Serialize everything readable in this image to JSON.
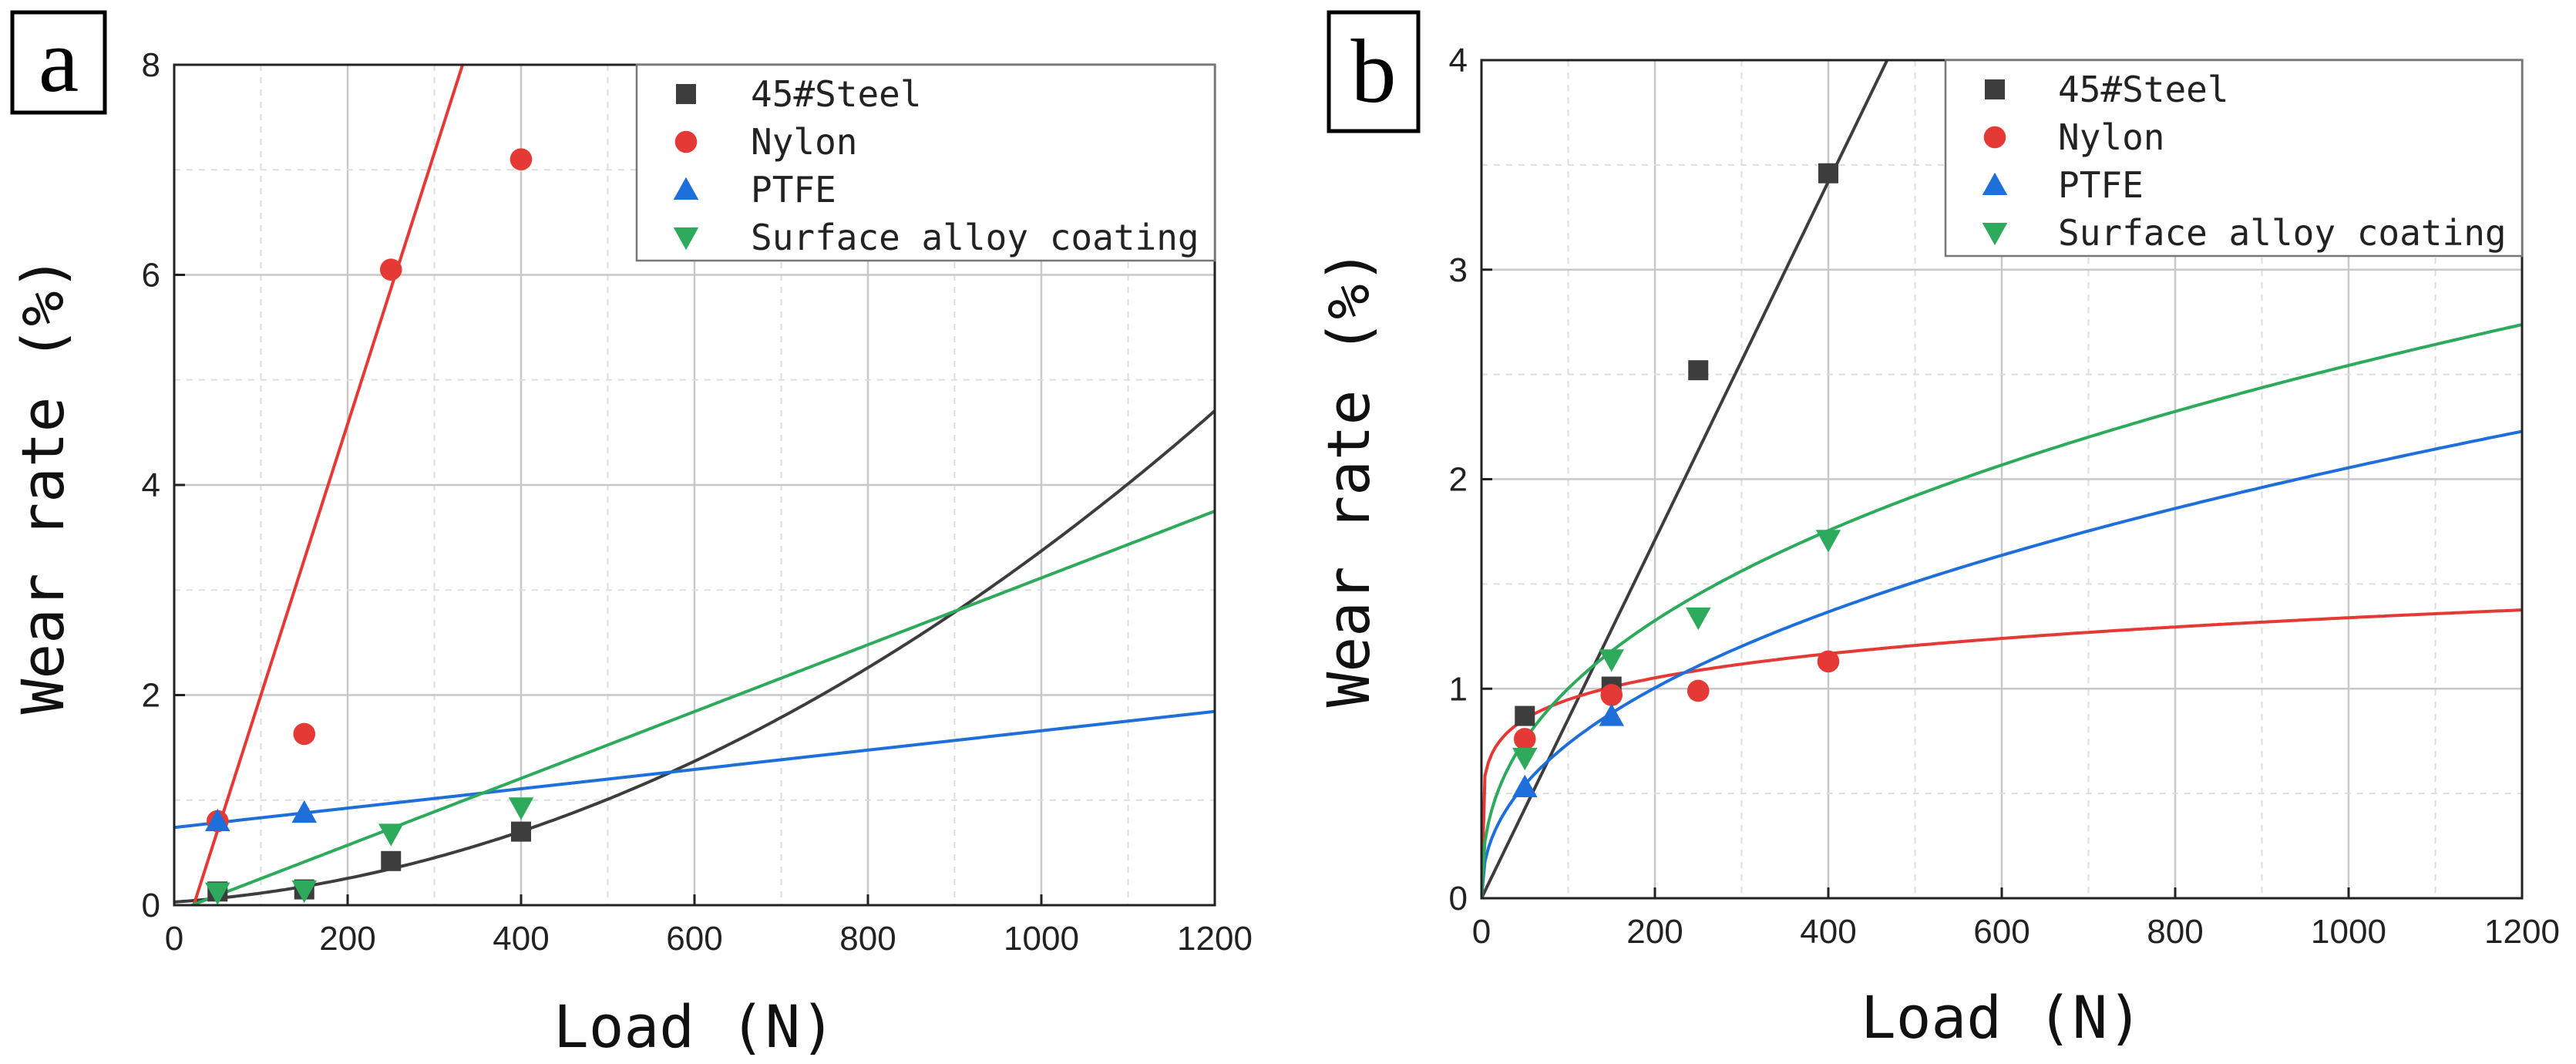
{
  "chart_data": [
    {
      "type": "scatter",
      "panel_label": "a",
      "xlabel": "Load (N)",
      "ylabel": "Wear rate (%)",
      "xlim": [
        0,
        1200
      ],
      "ylim": [
        0,
        8
      ],
      "xticks": [
        0,
        200,
        400,
        600,
        800,
        1000,
        1200
      ],
      "yticks": [
        0,
        2,
        4,
        6,
        8
      ],
      "grid": true,
      "legend": "top-right",
      "series": [
        {
          "name": "45#Steel",
          "marker": "square",
          "color": "#3d3d3d",
          "x": [
            50,
            150,
            250,
            400
          ],
          "y": [
            0.13,
            0.15,
            0.42,
            0.7
          ],
          "fit": {
            "type": "quadratic",
            "coeffs": [
              0.03,
              0.000572,
              2.77e-06
            ]
          }
        },
        {
          "name": "Nylon",
          "marker": "circle",
          "color": "#e53935",
          "x": [
            50,
            150,
            250,
            400
          ],
          "y": [
            0.8,
            1.63,
            6.05,
            7.1
          ],
          "fit": {
            "type": "linear",
            "coeffs": [
              -0.58,
              0.0258
            ]
          }
        },
        {
          "name": "PTFE",
          "marker": "triangle-up",
          "color": "#1e6fd9",
          "x": [
            50,
            150
          ],
          "y": [
            0.8,
            0.88
          ],
          "fit": {
            "type": "linear",
            "coeffs": [
              0.74,
              0.00092
            ]
          }
        },
        {
          "name": "Surface alloy coating",
          "marker": "triangle-down",
          "color": "#2eaa5c",
          "x": [
            50,
            150,
            250,
            400
          ],
          "y": [
            0.12,
            0.14,
            0.68,
            0.93
          ],
          "fit": {
            "type": "linear",
            "coeffs": [
              -0.065,
              0.00318
            ]
          }
        }
      ]
    },
    {
      "type": "scatter",
      "panel_label": "b",
      "xlabel": "Load (N)",
      "ylabel": "Wear rate (%)",
      "xlim": [
        0,
        1200
      ],
      "ylim": [
        0,
        4
      ],
      "xticks": [
        0,
        200,
        400,
        600,
        800,
        1000,
        1200
      ],
      "yticks": [
        0,
        1,
        2,
        3,
        4
      ],
      "grid": true,
      "legend": "top-right",
      "series": [
        {
          "name": "45#Steel",
          "marker": "square",
          "color": "#3d3d3d",
          "x": [
            50,
            150,
            250,
            400
          ],
          "y": [
            0.87,
            1.01,
            2.52,
            3.46
          ],
          "fit": {
            "type": "linear",
            "coeffs": [
              0.0,
              0.00855
            ]
          }
        },
        {
          "name": "Nylon",
          "marker": "circle",
          "color": "#e53935",
          "x": [
            50,
            150,
            250,
            400
          ],
          "y": [
            0.76,
            0.97,
            0.99,
            1.13
          ],
          "fit": {
            "type": "power",
            "coeffs": [
              0.475,
              0.15
            ]
          }
        },
        {
          "name": "PTFE",
          "marker": "triangle-up",
          "color": "#1e6fd9",
          "x": [
            50,
            150
          ],
          "y": [
            0.53,
            0.87
          ],
          "fit": {
            "type": "power",
            "coeffs": [
              0.095,
              0.445
            ]
          }
        },
        {
          "name": "Surface alloy coating",
          "marker": "triangle-down",
          "color": "#2eaa5c",
          "x": [
            50,
            150,
            250,
            400
          ],
          "y": [
            0.67,
            1.14,
            1.34,
            1.71
          ],
          "fit": {
            "type": "power",
            "coeffs": [
              0.155,
              0.405
            ]
          }
        }
      ]
    }
  ]
}
